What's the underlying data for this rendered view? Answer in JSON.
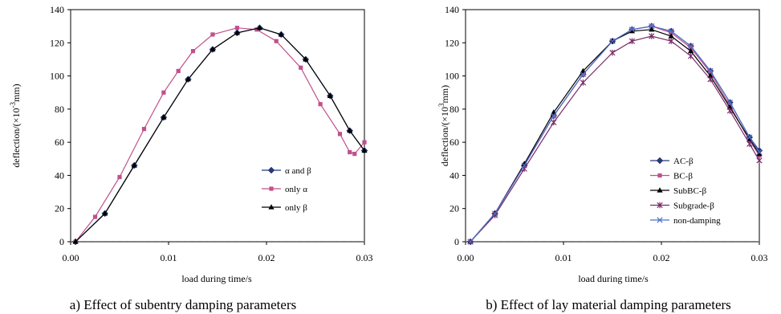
{
  "chart_data": [
    {
      "type": "line",
      "title": "",
      "xlabel": "load during time/s",
      "ylabel_parts": [
        "deflection/(×10",
        "-3",
        "mm)"
      ],
      "caption": "a) Effect of subentry damping parameters",
      "xlim": [
        0,
        0.03
      ],
      "ylim": [
        0,
        140
      ],
      "xticks": [
        "0.00",
        "0.01",
        "0.02",
        "0.03"
      ],
      "yticks": [
        "0",
        "20",
        "40",
        "60",
        "80",
        "100",
        "120",
        "140"
      ],
      "grid": false,
      "legend_position": "lower-right",
      "series": [
        {
          "name": "α and β",
          "color": "#283878",
          "marker": "diamond",
          "x": [
            0.0005,
            0.0035,
            0.0065,
            0.0095,
            0.012,
            0.0145,
            0.017,
            0.0193,
            0.0215,
            0.024,
            0.0265,
            0.0285,
            0.03
          ],
          "y": [
            0,
            17,
            46,
            75,
            98,
            116,
            126,
            129,
            125,
            110,
            88,
            67,
            55
          ]
        },
        {
          "name": "only α",
          "color": "#c0508c",
          "marker": "square",
          "x": [
            0.0005,
            0.0025,
            0.005,
            0.0075,
            0.0095,
            0.011,
            0.0125,
            0.0145,
            0.017,
            0.019,
            0.021,
            0.0235,
            0.0255,
            0.0275,
            0.0285,
            0.029,
            0.03
          ],
          "y": [
            0,
            15,
            39,
            68,
            90,
            103,
            115,
            125,
            129,
            128,
            121,
            105,
            83,
            65,
            54,
            53,
            60
          ]
        },
        {
          "name": "only β",
          "color": "#000000",
          "marker": "triangle",
          "x": [
            0.0005,
            0.0035,
            0.0065,
            0.0095,
            0.012,
            0.0145,
            0.017,
            0.0193,
            0.0215,
            0.024,
            0.0265,
            0.0285,
            0.03
          ],
          "y": [
            0,
            17,
            46,
            75,
            98,
            116,
            126,
            129,
            125,
            110,
            88,
            67,
            55
          ]
        }
      ]
    },
    {
      "type": "line",
      "title": "",
      "xlabel": "load during time/s",
      "ylabel_parts": [
        "deflection/(×10",
        "3",
        "mm)"
      ],
      "caption": "b) Effect of lay material damping parameters",
      "xlim": [
        0,
        0.03
      ],
      "ylim": [
        0,
        140
      ],
      "xticks": [
        "0.00",
        "0.01",
        "0.02",
        "0.03"
      ],
      "yticks": [
        "0",
        "20",
        "40",
        "60",
        "80",
        "100",
        "120",
        "140"
      ],
      "grid": false,
      "legend_position": "lower-right",
      "series": [
        {
          "name": "AC-β",
          "color": "#283878",
          "marker": "diamond",
          "x": [
            0.0005,
            0.003,
            0.006,
            0.009,
            0.012,
            0.015,
            0.017,
            0.019,
            0.021,
            0.023,
            0.025,
            0.027,
            0.029,
            0.03
          ],
          "y": [
            0,
            17,
            46,
            76,
            101,
            121,
            128,
            130,
            127,
            118,
            103,
            84,
            63,
            55
          ]
        },
        {
          "name": "BC-β",
          "color": "#c0508c",
          "marker": "square",
          "x": [
            0.0005,
            0.003,
            0.006,
            0.009,
            0.012,
            0.015,
            0.017,
            0.019,
            0.021,
            0.023,
            0.025,
            0.027,
            0.029,
            0.03
          ],
          "y": [
            0,
            17,
            46,
            76,
            101,
            121,
            128,
            130,
            126,
            117,
            102,
            82,
            61,
            52
          ]
        },
        {
          "name": "SubBC-β",
          "color": "#000000",
          "marker": "triangle",
          "x": [
            0.0005,
            0.003,
            0.006,
            0.009,
            0.012,
            0.015,
            0.017,
            0.019,
            0.021,
            0.023,
            0.025,
            0.027,
            0.029,
            0.03
          ],
          "y": [
            0,
            17,
            47,
            78,
            103,
            121,
            127,
            128,
            124,
            115,
            100,
            81,
            62,
            53
          ]
        },
        {
          "name": "Subgrade-β",
          "color": "#7a2a6a",
          "marker": "star",
          "x": [
            0.0005,
            0.003,
            0.006,
            0.009,
            0.012,
            0.015,
            0.017,
            0.019,
            0.021,
            0.023,
            0.025,
            0.027,
            0.029,
            0.03
          ],
          "y": [
            0,
            16,
            44,
            72,
            96,
            114,
            121,
            124,
            121,
            112,
            98,
            79,
            59,
            49
          ]
        },
        {
          "name": "non-damping",
          "color": "#4a70c8",
          "marker": "x",
          "x": [
            0.0005,
            0.003,
            0.006,
            0.009,
            0.012,
            0.015,
            0.017,
            0.019,
            0.021,
            0.023,
            0.025,
            0.027,
            0.029,
            0.03
          ],
          "y": [
            0,
            17,
            46,
            76,
            101,
            121,
            128,
            130,
            127,
            118,
            103,
            84,
            63,
            54
          ]
        }
      ]
    }
  ]
}
